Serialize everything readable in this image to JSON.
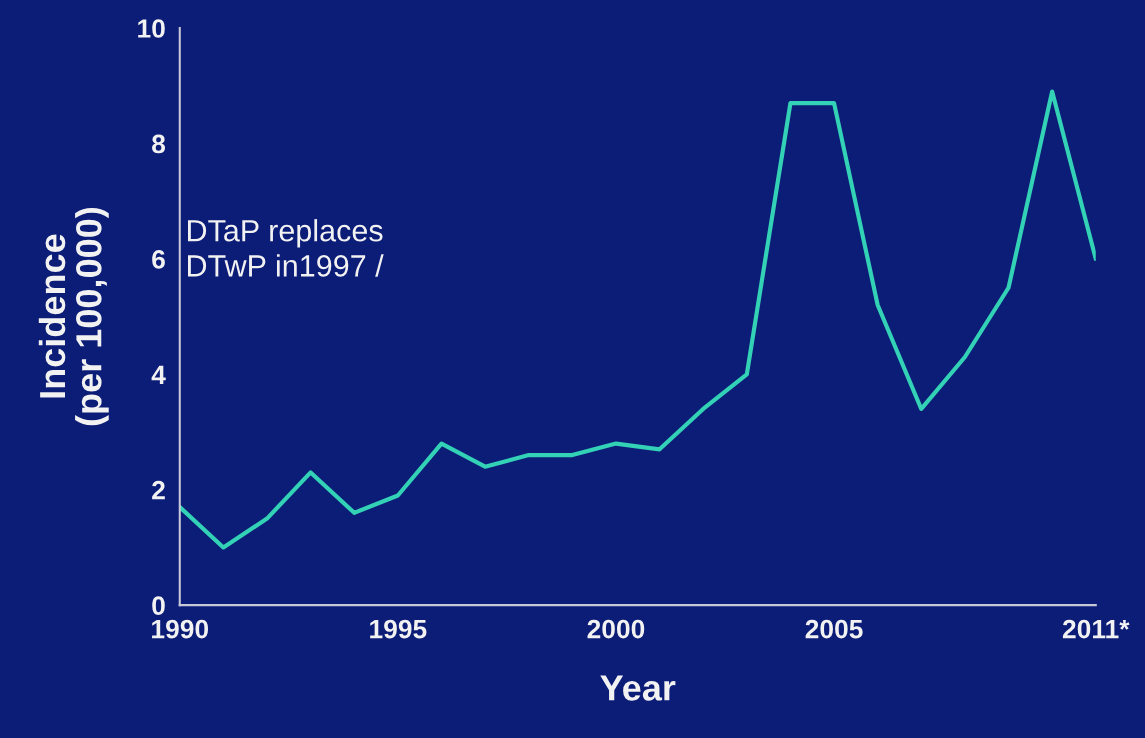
{
  "chart_data": {
    "type": "line",
    "xlabel": "Year",
    "ylabel": "Incidence\n(per 100,000)",
    "x": [
      1990,
      1991,
      1992,
      1993,
      1994,
      1995,
      1996,
      1997,
      1998,
      1999,
      2000,
      2001,
      2002,
      2003,
      2004,
      2005,
      2006,
      2007,
      2008,
      2009,
      2010,
      2011
    ],
    "series": [
      {
        "color": "#33d1b5",
        "values": [
          1.7,
          1.0,
          1.5,
          2.3,
          1.6,
          1.9,
          2.8,
          2.4,
          2.6,
          2.6,
          2.8,
          2.7,
          3.4,
          4.0,
          8.7,
          8.7,
          5.2,
          3.4,
          4.3,
          5.5,
          8.9,
          6.0
        ]
      }
    ],
    "xlim": [
      1990,
      2011
    ],
    "ylim": [
      0,
      10
    ],
    "xticks": [
      1990,
      1995,
      2000,
      2005,
      {
        "value": 2011,
        "label": "2011*"
      }
    ],
    "yticks": [
      0,
      2,
      4,
      6,
      8,
      10
    ],
    "annotations": [
      "DTaP replaces\nDTwP in1997 /"
    ],
    "grid": false,
    "legend": false,
    "marker": "none",
    "line_style": "solid"
  }
}
